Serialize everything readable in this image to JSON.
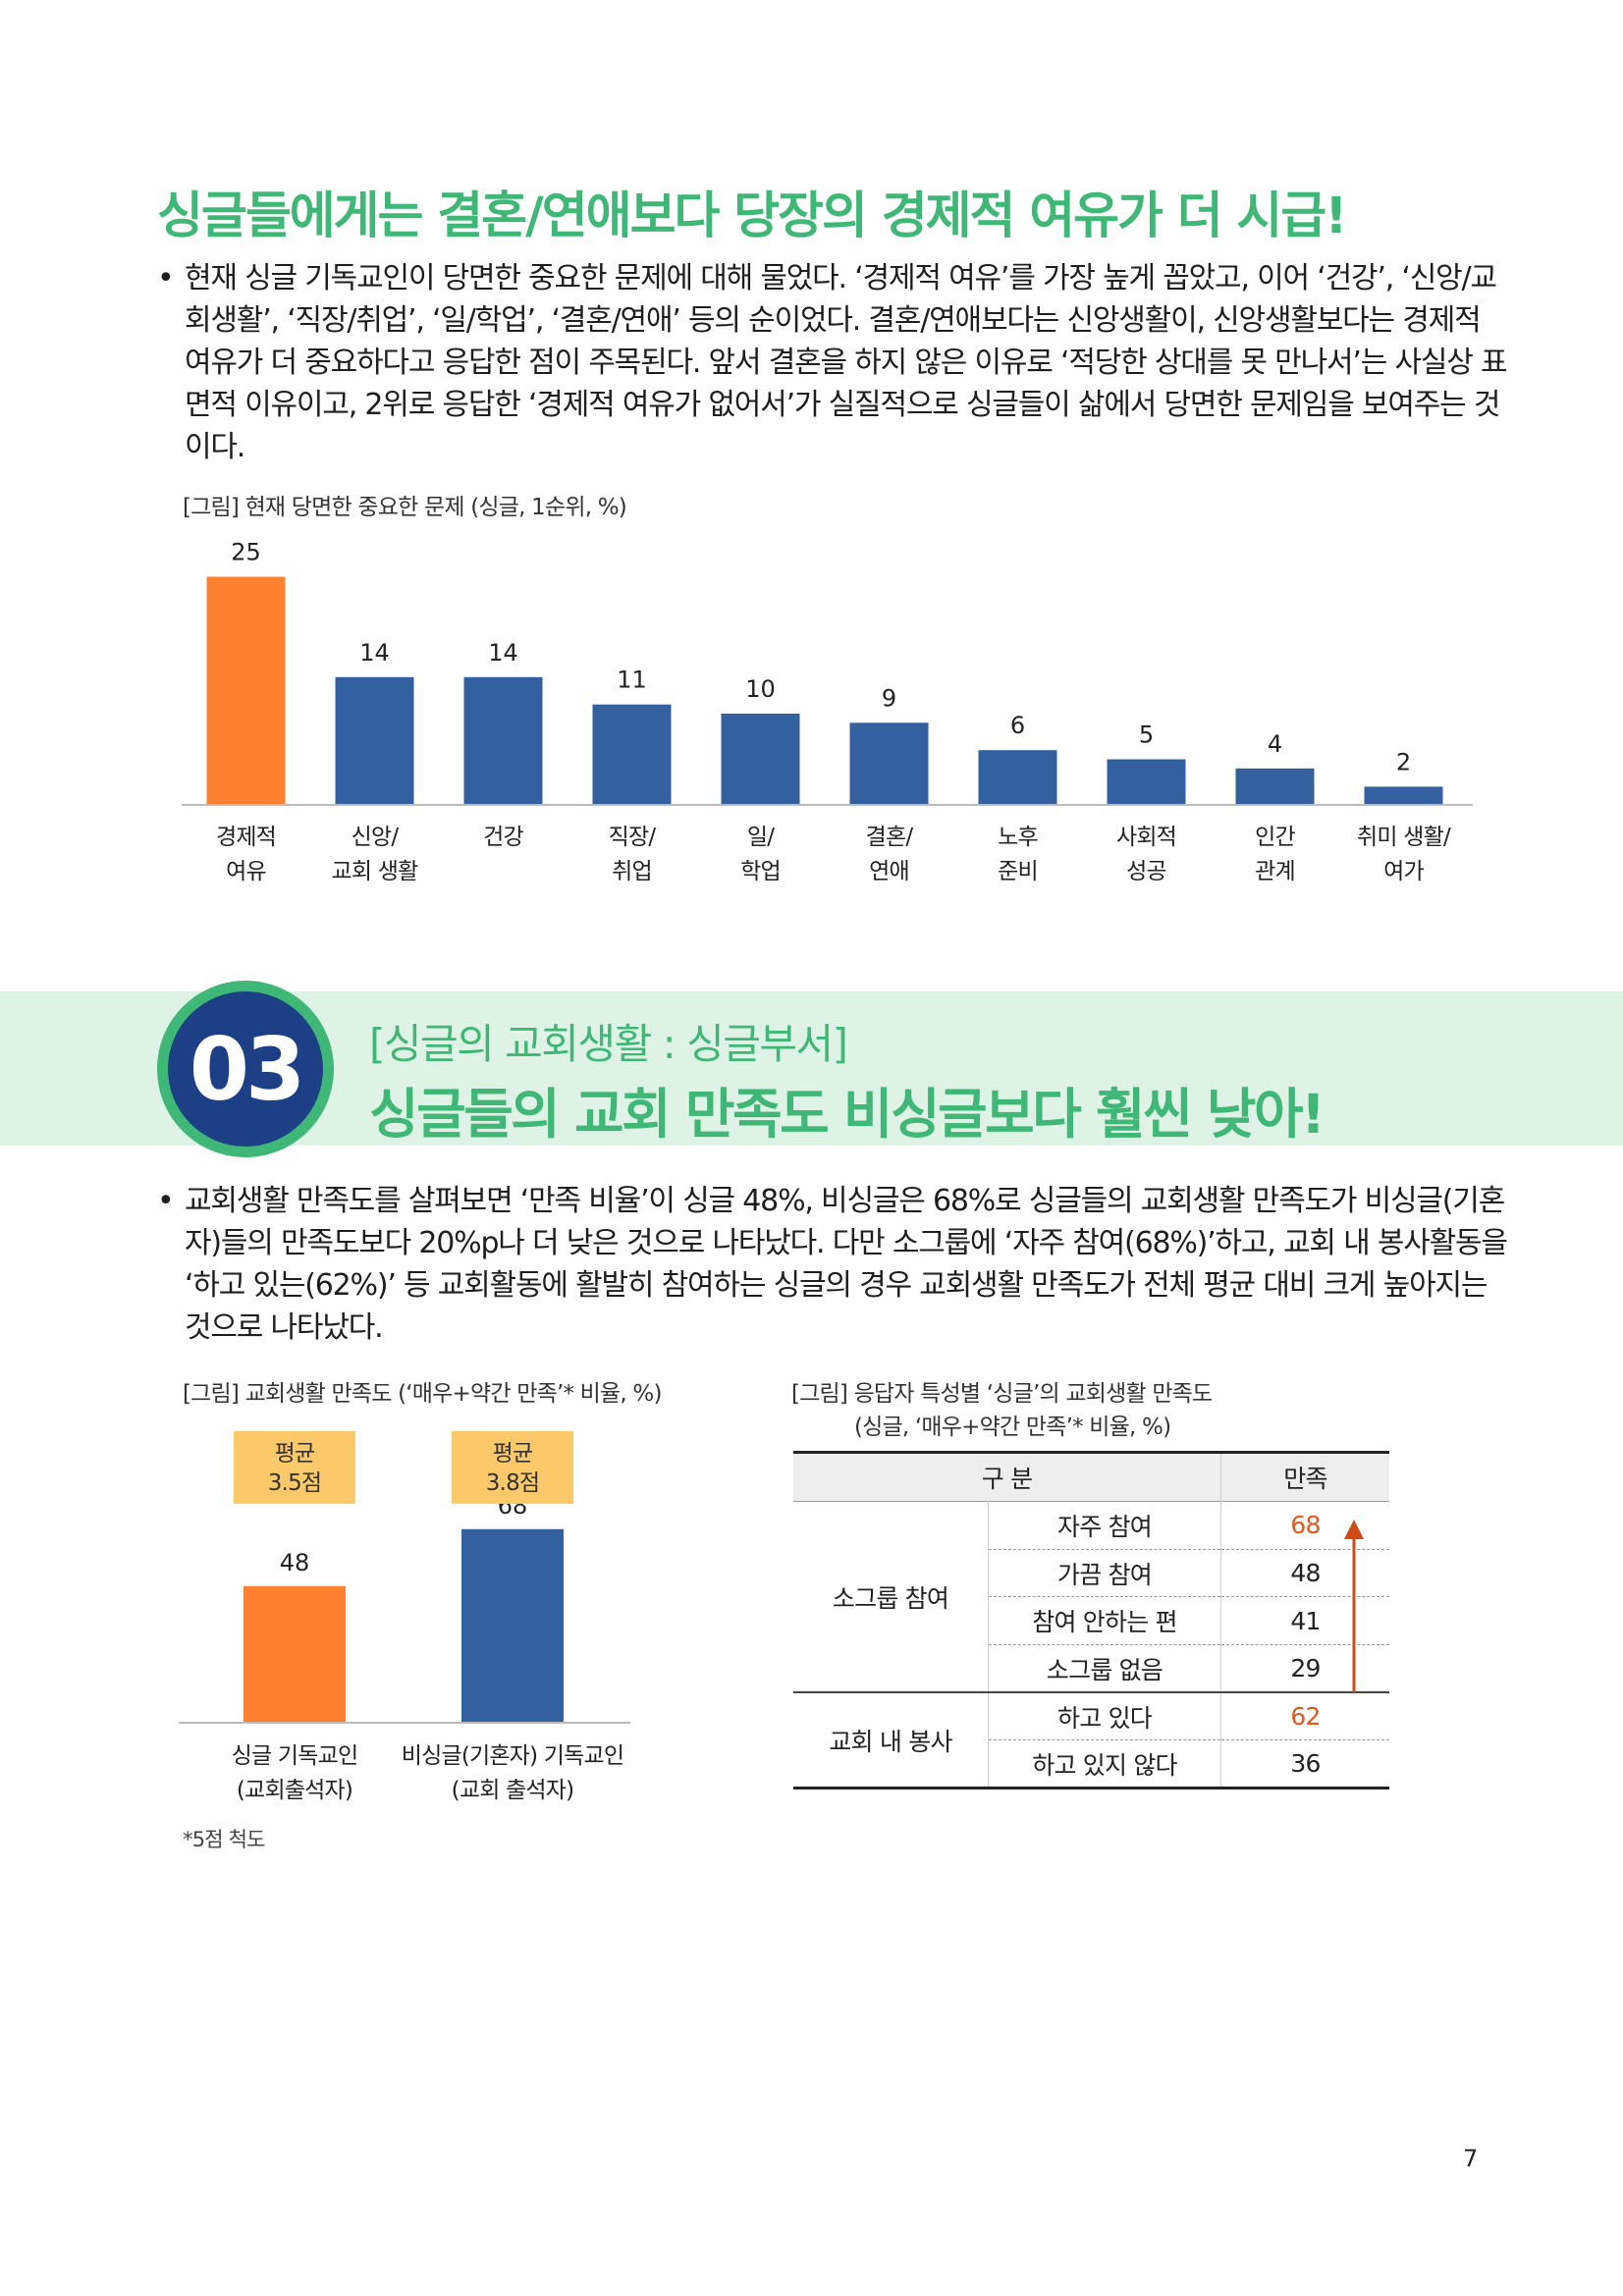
{
  "section2": {
    "heading": "싱글들에게는 결혼/연애보다 당장의 경제적 여유가 더 시급!",
    "bullet": "•",
    "paragraph_lines": [
      "현재 싱글 기독교인이 당면한 중요한 문제에 대해 물었다. ‘경제적 여유’를 가장 높게 꼽았고, 이어 ‘건강’, ‘신앙/교",
      "회생활’, ‘직장/취업’, ‘일/학업’, ‘결혼/연애’ 등의 순이었다. 결혼/연애보다는 신앙생활이, 신앙생활보다는 경제적",
      "여유가 더 중요하다고 응답한 점이 주목된다. 앞서 결혼을 하지 않은 이유로 ‘적당한 상대를 못 만나서’는 사실상 표",
      "면적 이유이고, 2위로 응답한 ‘경제적 여유가 없어서’가 실질적으로 싱글들이 삶에서 당면한 문제임을 보여주는 것",
      "이다."
    ],
    "figure_caption": "[그림] 현재 당면한 중요한 문제 (싱글, 1순위, %)"
  },
  "section3": {
    "badge_number": "03",
    "subtitle": "[싱글의 교회생활 : 싱글부서]",
    "title": "싱글들의 교회 만족도 비싱글보다 훨씬 낮아!",
    "bullet": "•",
    "paragraph_lines": [
      "교회생활 만족도를 살펴보면 ‘만족 비율’이 싱글 48%, 비싱글은 68%로 싱글들의 교회생활 만족도가 비싱글(기혼",
      "자)들의 만족도보다 20%p나 더 낮은 것으로 나타났다. 다만 소그룹에 ‘자주 참여(68%)’하고, 교회 내 봉사활동을",
      "‘하고 있는(62%)’ 등 교회활동에 활발히 참여하는 싱글의 경우 교회생활 만족도가 전체 평균 대비 크게 높아지는",
      "것으로 나타났다."
    ],
    "figure2_caption": "[그림] 교회생활 만족도 (‘매우+약간 만족’* 비율, %)",
    "figure2_footnote": "*5점 척도",
    "table_caption_line1": "[그림] 응답자 특성별 ‘싱글’의 교회생활 만족도",
    "table_caption_line2": "(싱글, ‘매우+약간 만족’* 비율, %)",
    "table": {
      "header": [
        "구 분",
        "만족"
      ],
      "groups": [
        {
          "label": "소그룹 참여",
          "rows": [
            {
              "label": "자주 참여",
              "value": "68",
              "highlight": true
            },
            {
              "label": "가끔 참여",
              "value": "48",
              "highlight": false
            },
            {
              "label": "참여 안하는 편",
              "value": "41",
              "highlight": false
            },
            {
              "label": "소그룹 없음",
              "value": "29",
              "highlight": false
            }
          ]
        },
        {
          "label": "교회 내 봉사",
          "rows": [
            {
              "label": "하고 있다",
              "value": "62",
              "highlight": true
            },
            {
              "label": "하고 있지 않다",
              "value": "36",
              "highlight": false
            }
          ]
        }
      ],
      "highlight_color": "#e05a1e",
      "arrow_color": "#d04a14"
    }
  },
  "page_number": "7",
  "colors": {
    "green": "#3fb776",
    "navy": "#1c3f86",
    "bar_blue": "#34609f",
    "bar_orange": "#fd8130",
    "avg_box": "#fbc96a",
    "band": "#dff2e6"
  },
  "chart_data": [
    {
      "type": "bar",
      "categories": [
        [
          "경제적",
          "여유"
        ],
        [
          "신앙/",
          "교회 생활"
        ],
        [
          "건강",
          ""
        ],
        [
          "직장/",
          "취업"
        ],
        [
          "일/",
          "학업"
        ],
        [
          "결혼/",
          "연애"
        ],
        [
          "노후",
          "준비"
        ],
        [
          "사회적",
          "성공"
        ],
        [
          "인간",
          "관계"
        ],
        [
          "취미 생활/",
          "여가"
        ]
      ],
      "values": [
        25,
        14,
        14,
        11,
        10,
        9,
        6,
        5,
        4,
        2
      ],
      "highlight_index": 0,
      "data_labels": true
    },
    {
      "type": "bar",
      "categories": [
        [
          "싱글 기독교인",
          "(교회출석자)"
        ],
        [
          "비싱글(기혼자) 기독교인",
          "(교회 출석자)"
        ]
      ],
      "values": [
        48,
        68
      ],
      "averages": [
        "평균\n3.5점",
        "평균\n3.8점"
      ],
      "data_labels": true
    }
  ]
}
